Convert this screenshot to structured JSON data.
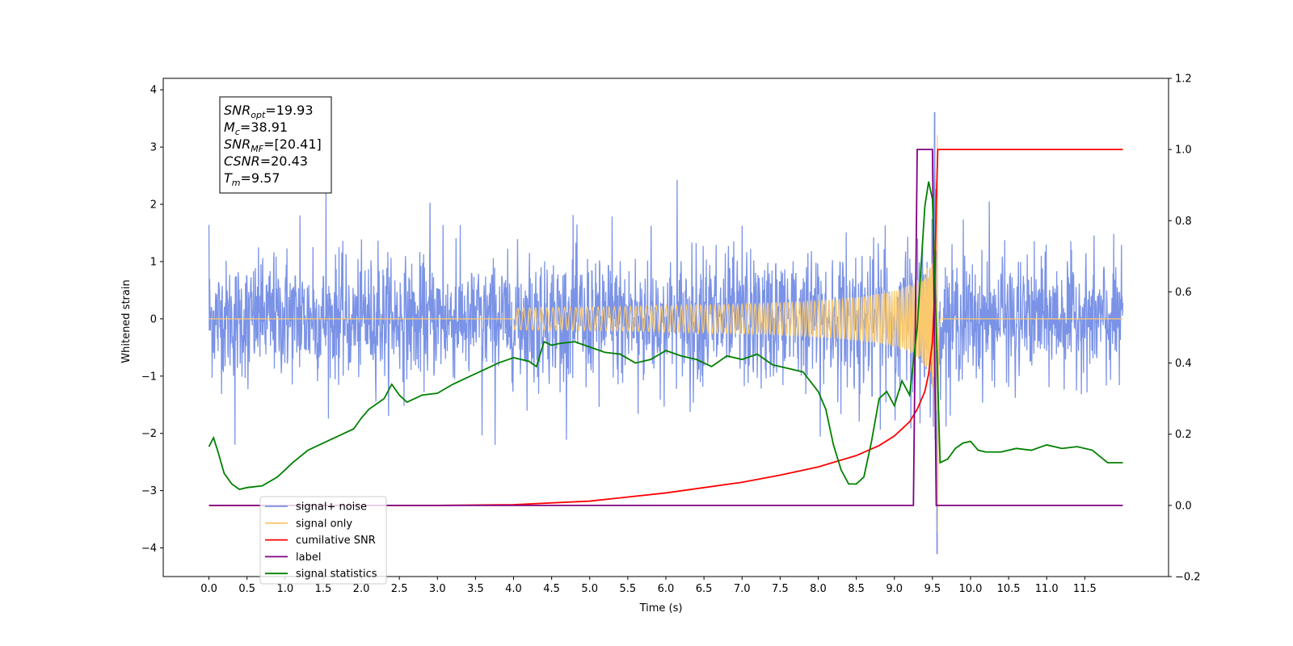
{
  "chart_data": {
    "type": "line",
    "xlabel": "Time (s)",
    "ylabel": "Whitened strain",
    "xlim": [
      -0.6,
      12.6
    ],
    "ylim": [
      -4.5,
      4.2
    ],
    "y2lim": [
      -0.2,
      1.2
    ],
    "grid": false,
    "legend_position": "lower-left",
    "x_ticks": [
      0.0,
      0.5,
      1.0,
      1.5,
      2.0,
      2.5,
      3.0,
      3.5,
      4.0,
      4.5,
      5.0,
      5.5,
      6.0,
      6.5,
      7.0,
      7.5,
      8.0,
      8.5,
      9.0,
      9.5,
      10.0,
      10.5,
      11.0,
      11.5
    ],
    "x_tick_labels": [
      "0.0",
      "0.5",
      "1.0",
      "1.5",
      "2.0",
      "2.5",
      "3.0",
      "3.5",
      "4.0",
      "4.5",
      "5.0",
      "5.5",
      "6.0",
      "6.5",
      "7.0",
      "7.5",
      "8.0",
      "8.5",
      "9.0",
      "9.5",
      "10.0",
      "10.5",
      "11.0",
      "11.5"
    ],
    "y_ticks": [
      -4,
      -3,
      -2,
      -1,
      0,
      1,
      2,
      3,
      4
    ],
    "y_tick_labels": [
      "−4",
      "−3",
      "−2",
      "−1",
      "0",
      "1",
      "2",
      "3",
      "4"
    ],
    "y2_ticks": [
      -0.2,
      0.0,
      0.2,
      0.4,
      0.6,
      0.8,
      1.0,
      1.2
    ],
    "y2_tick_labels": [
      "−0.2",
      "0.0",
      "0.2",
      "0.4",
      "0.6",
      "0.8",
      "1.0",
      "1.2"
    ],
    "annotation": {
      "lines": [
        {
          "main": "SNR",
          "sub": "opt",
          "value": "=19.93"
        },
        {
          "main": "M",
          "sub": "c",
          "value": "=38.91"
        },
        {
          "main": "SNR",
          "sub": "MF",
          "value": "=[20.41]"
        },
        {
          "main": "CSNR",
          "sub": "",
          "value": "=20.43"
        },
        {
          "main": "T",
          "sub": "m",
          "value": "=9.57"
        }
      ]
    },
    "legend": [
      {
        "label": "signal+ noise",
        "color": "#7b93e6"
      },
      {
        "label": "signal only",
        "color": "#fbc96d"
      },
      {
        "label": "cumilative SNR",
        "color": "#ff0000"
      },
      {
        "label": "label",
        "color": "#800080"
      },
      {
        "label": "signal statistics",
        "color": "#008000"
      }
    ],
    "series": [
      {
        "name": "signal+ noise",
        "axis": "left",
        "color": "#7b93e6",
        "t_range": [
          0.0,
          12.0
        ],
        "noise_band": [
          -1.3,
          1.3
        ],
        "noise_extremes": [
          -2.2,
          2.9
        ],
        "signal_peak": {
          "x": 9.53,
          "y_max": 3.6,
          "y_min": -4.1
        }
      },
      {
        "name": "signal only",
        "axis": "left",
        "color": "#fbc96d",
        "chirp_start": 4.0,
        "merger_time": 9.57,
        "peak_amplitude": 3.8
      },
      {
        "name": "cumilative SNR",
        "axis": "right",
        "color": "#ff0000",
        "x": [
          0.0,
          3.0,
          4.0,
          5.0,
          6.0,
          7.0,
          7.5,
          8.0,
          8.5,
          8.8,
          9.0,
          9.2,
          9.3,
          9.4,
          9.45,
          9.5,
          9.53,
          9.55,
          9.57,
          12.0
        ],
        "values": [
          0.0,
          0.0,
          0.002,
          0.012,
          0.035,
          0.065,
          0.085,
          0.108,
          0.14,
          0.168,
          0.195,
          0.235,
          0.27,
          0.32,
          0.37,
          0.46,
          0.6,
          0.85,
          1.0,
          1.0
        ]
      },
      {
        "name": "label",
        "axis": "right",
        "color": "#800080",
        "x": [
          0.0,
          9.25,
          9.3,
          9.5,
          9.55,
          12.0
        ],
        "values": [
          0.0,
          0.0,
          1.0,
          1.0,
          0.0,
          0.0
        ]
      },
      {
        "name": "signal statistics",
        "axis": "right",
        "color": "#008000",
        "x": [
          0.0,
          0.06,
          0.12,
          0.2,
          0.3,
          0.4,
          0.5,
          0.7,
          0.9,
          1.0,
          1.1,
          1.3,
          1.5,
          1.7,
          1.9,
          2.0,
          2.1,
          2.3,
          2.4,
          2.5,
          2.6,
          2.8,
          3.0,
          3.2,
          3.4,
          3.6,
          3.8,
          4.0,
          4.2,
          4.3,
          4.4,
          4.5,
          4.6,
          4.8,
          5.0,
          5.2,
          5.4,
          5.6,
          5.8,
          6.0,
          6.2,
          6.4,
          6.6,
          6.8,
          7.0,
          7.2,
          7.4,
          7.6,
          7.8,
          8.0,
          8.1,
          8.2,
          8.3,
          8.4,
          8.5,
          8.6,
          8.7,
          8.8,
          8.9,
          9.0,
          9.1,
          9.2,
          9.3,
          9.4,
          9.45,
          9.5,
          9.55,
          9.6,
          9.7,
          9.8,
          9.9,
          10.0,
          10.1,
          10.2,
          10.4,
          10.6,
          10.8,
          11.0,
          11.2,
          11.4,
          11.6,
          11.8,
          11.9,
          12.0
        ],
        "values": [
          0.165,
          0.19,
          0.15,
          0.09,
          0.06,
          0.045,
          0.05,
          0.055,
          0.08,
          0.1,
          0.12,
          0.155,
          0.175,
          0.195,
          0.215,
          0.245,
          0.27,
          0.3,
          0.34,
          0.31,
          0.29,
          0.31,
          0.315,
          0.34,
          0.36,
          0.38,
          0.4,
          0.415,
          0.405,
          0.39,
          0.46,
          0.45,
          0.455,
          0.46,
          0.445,
          0.43,
          0.425,
          0.4,
          0.41,
          0.435,
          0.42,
          0.41,
          0.39,
          0.42,
          0.41,
          0.425,
          0.395,
          0.385,
          0.375,
          0.32,
          0.27,
          0.17,
          0.1,
          0.06,
          0.06,
          0.08,
          0.18,
          0.3,
          0.32,
          0.28,
          0.35,
          0.31,
          0.5,
          0.84,
          0.91,
          0.86,
          0.5,
          0.12,
          0.13,
          0.16,
          0.175,
          0.18,
          0.155,
          0.15,
          0.15,
          0.16,
          0.155,
          0.17,
          0.16,
          0.165,
          0.155,
          0.12,
          0.12,
          0.12
        ]
      }
    ]
  }
}
